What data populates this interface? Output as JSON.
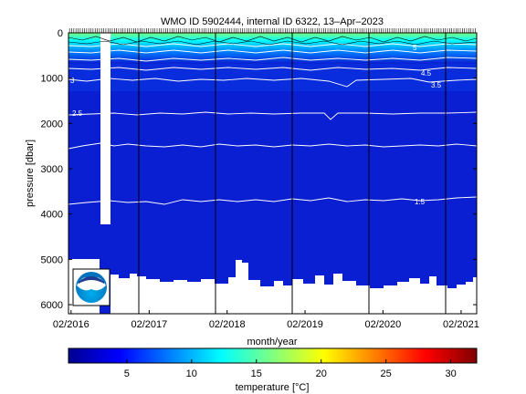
{
  "title": "WMO ID 5902444, internal ID 6322, 13–Apr–2023",
  "chart_data": {
    "type": "heatmap",
    "title": "WMO ID 5902444, internal ID 6322, 13–Apr–2023",
    "xlabel": "month/year",
    "ylabel": "pressure [dbar]",
    "colorbar_label": "temperature [°C]",
    "x_range": [
      "2016-01-20",
      "2021-04-15"
    ],
    "x_ticks": [
      "02/2016",
      "02/2017",
      "02/2018",
      "02/2019",
      "02/2020",
      "02/2021"
    ],
    "y_ticks": [
      0,
      1000,
      2000,
      3000,
      4000,
      5000,
      6000
    ],
    "ylim": [
      6200,
      0
    ],
    "y_reversed": true,
    "colorbar_range": [
      0.5,
      32
    ],
    "colorbar_ticks": [
      5,
      10,
      15,
      20,
      25,
      30
    ],
    "colormap": "jet",
    "isotherms": [
      {
        "label": "1.5",
        "approx_pressure_dbar": 3750
      },
      {
        "label": "2",
        "approx_pressure_dbar": 2550
      },
      {
        "label": "2.5",
        "approx_pressure_dbar": 1800
      },
      {
        "label": "3",
        "approx_pressure_dbar": 1050
      },
      {
        "label": "4.5",
        "approx_pressure_dbar": 860
      },
      {
        "label": "3.5",
        "approx_pressure_dbar": 1120
      },
      {
        "label": "5",
        "approx_pressure_dbar": 900
      }
    ],
    "bottom_depth_dbar": [
      5300,
      5350,
      5500,
      5450,
      5400,
      5550,
      5350,
      5600,
      5450,
      5650,
      5500,
      5600
    ],
    "logo": "NOAA"
  },
  "colors": {
    "data_background": "#0a1ed2",
    "contour_line": "#ffffff",
    "grid_line": "#000000",
    "no_data": "#ffffff"
  }
}
